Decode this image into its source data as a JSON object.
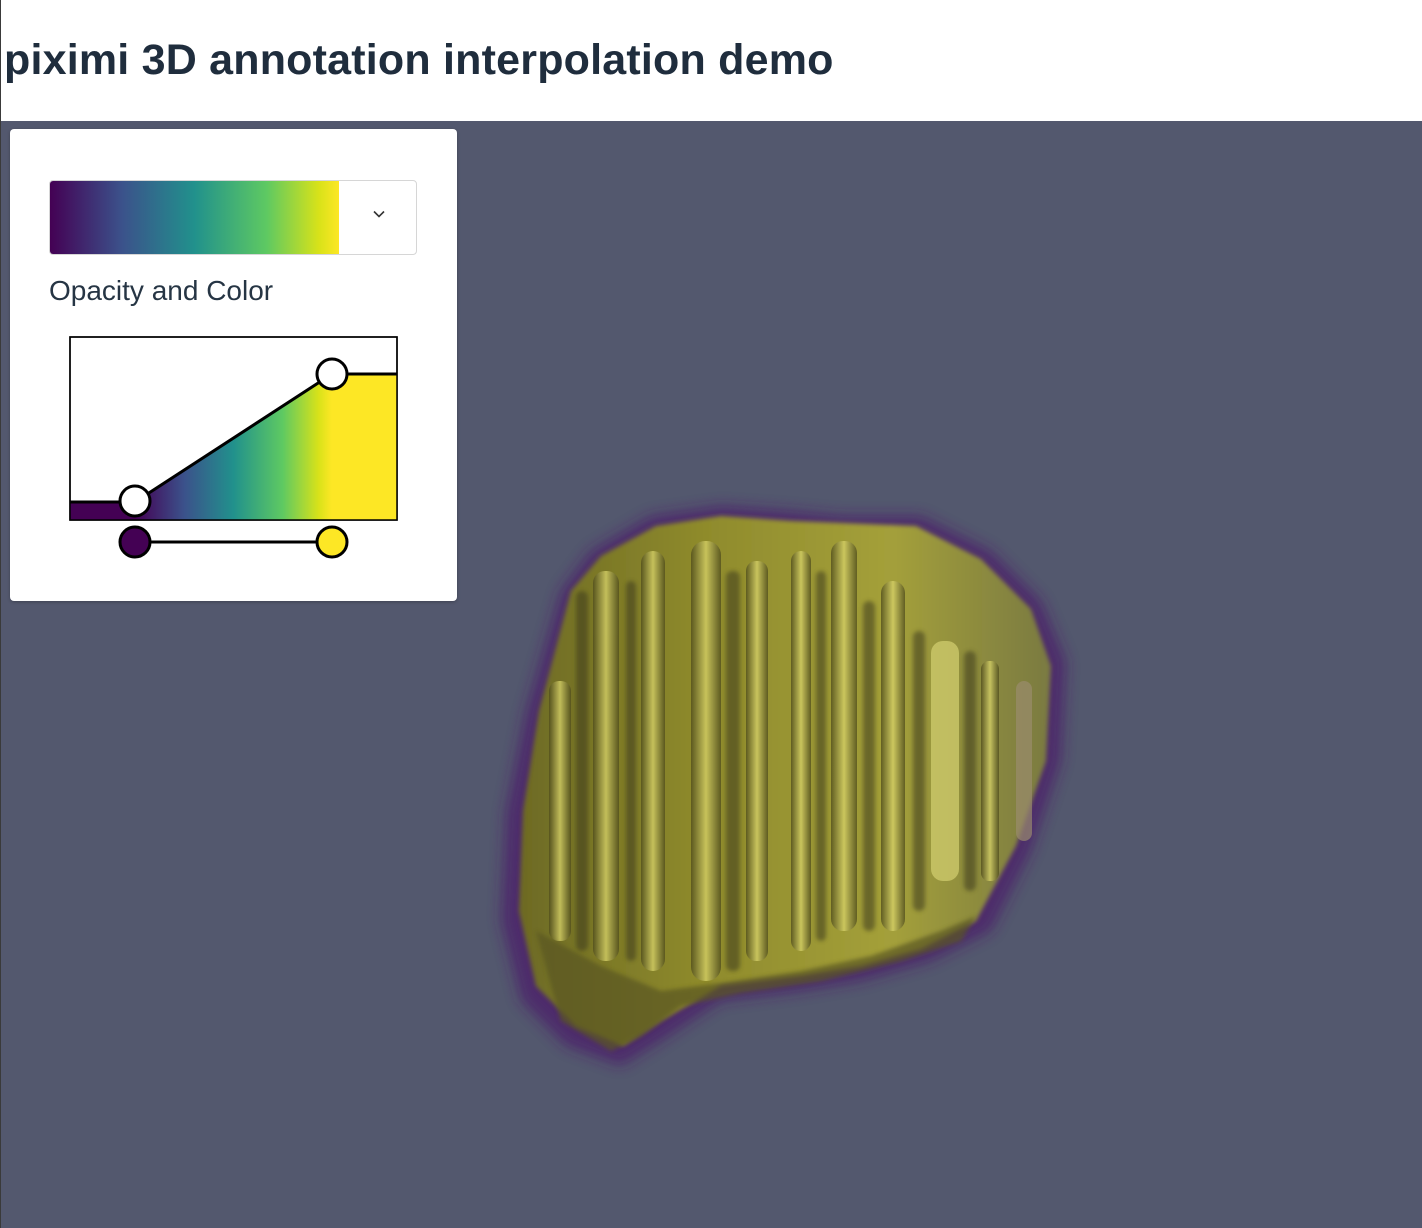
{
  "header": {
    "title": "piximi 3D annotation interpolation demo"
  },
  "colors": {
    "viewport_background": "#53586e",
    "title_color": "#1f2d3d",
    "colormap": [
      "#440154",
      "#3b528b",
      "#21918c",
      "#5ec962",
      "#fde725"
    ]
  },
  "controls": {
    "colormap_preset": {
      "selected": "viridis",
      "icon": "chevron-down-icon"
    },
    "opacity_color_label": "Opacity and Color",
    "opacity_points": [
      {
        "position": 0.2,
        "opacity": 0.1
      },
      {
        "position": 0.8,
        "opacity": 0.8
      }
    ],
    "color_range_handles": [
      {
        "position": 0.2,
        "color": "#440154"
      },
      {
        "position": 0.8,
        "color": "#fde725"
      }
    ]
  }
}
